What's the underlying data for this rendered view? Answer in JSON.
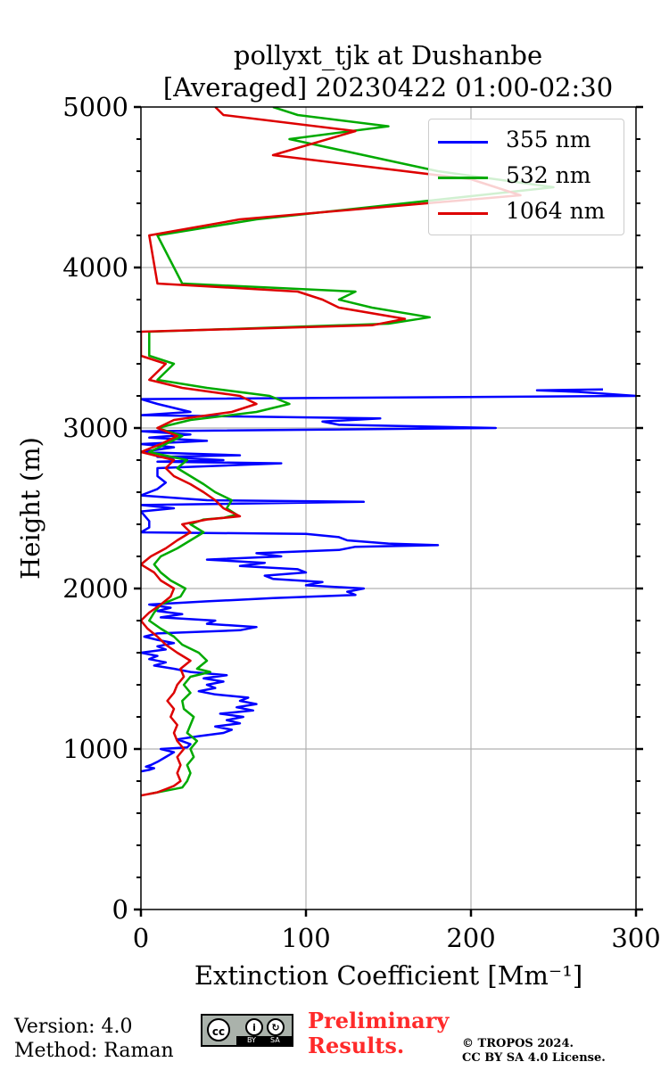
{
  "chart_data": {
    "type": "line",
    "title": [
      "pollyxt_tjk at Dushanbe",
      "[Averaged] 20230422 01:00-02:30"
    ],
    "xlabel": "Extinction Coefficient [Mm⁻¹]",
    "ylabel": "Height (m)",
    "xlim": [
      0,
      300
    ],
    "ylim": [
      0,
      5000
    ],
    "xticks": [
      0,
      100,
      200,
      300
    ],
    "yticks": [
      0,
      1000,
      2000,
      3000,
      4000,
      5000
    ],
    "grid": true,
    "legend_position": "top-right",
    "series": [
      {
        "name": "355 nm",
        "color": "#0000ff",
        "points": [
          [
            0,
            860
          ],
          [
            5,
            870
          ],
          [
            8,
            880
          ],
          [
            3,
            890
          ],
          [
            6,
            900
          ],
          [
            10,
            920
          ],
          [
            15,
            950
          ],
          [
            20,
            980
          ],
          [
            12,
            1000
          ],
          [
            28,
            1010
          ],
          [
            30,
            1030
          ],
          [
            22,
            1060
          ],
          [
            35,
            1080
          ],
          [
            50,
            1100
          ],
          [
            55,
            1120
          ],
          [
            45,
            1140
          ],
          [
            60,
            1160
          ],
          [
            52,
            1180
          ],
          [
            62,
            1200
          ],
          [
            48,
            1220
          ],
          [
            68,
            1240
          ],
          [
            58,
            1260
          ],
          [
            70,
            1280
          ],
          [
            60,
            1300
          ],
          [
            65,
            1320
          ],
          [
            45,
            1340
          ],
          [
            35,
            1360
          ],
          [
            45,
            1380
          ],
          [
            40,
            1400
          ],
          [
            50,
            1420
          ],
          [
            38,
            1440
          ],
          [
            52,
            1460
          ],
          [
            30,
            1480
          ],
          [
            20,
            1500
          ],
          [
            8,
            1520
          ],
          [
            15,
            1540
          ],
          [
            5,
            1560
          ],
          [
            10,
            1580
          ],
          [
            0,
            1600
          ],
          [
            15,
            1620
          ],
          [
            10,
            1640
          ],
          [
            20,
            1660
          ],
          [
            10,
            1680
          ],
          [
            2,
            1700
          ],
          [
            10,
            1720
          ],
          [
            60,
            1740
          ],
          [
            70,
            1760
          ],
          [
            40,
            1780
          ],
          [
            45,
            1800
          ],
          [
            12,
            1820
          ],
          [
            25,
            1840
          ],
          [
            10,
            1860
          ],
          [
            18,
            1880
          ],
          [
            5,
            1900
          ],
          [
            40,
            1920
          ],
          [
            80,
            1940
          ],
          [
            130,
            1960
          ],
          [
            125,
            1980
          ],
          [
            135,
            2000
          ],
          [
            100,
            2020
          ],
          [
            110,
            2040
          ],
          [
            80,
            2060
          ],
          [
            75,
            2080
          ],
          [
            100,
            2100
          ],
          [
            95,
            2120
          ],
          [
            60,
            2140
          ],
          [
            75,
            2160
          ],
          [
            40,
            2180
          ],
          [
            85,
            2200
          ],
          [
            70,
            2220
          ],
          [
            120,
            2240
          ],
          [
            130,
            2260
          ],
          [
            180,
            2270
          ],
          [
            150,
            2280
          ],
          [
            125,
            2300
          ],
          [
            120,
            2320
          ],
          [
            100,
            2340
          ],
          [
            0,
            2350
          ],
          [
            5,
            2380
          ],
          [
            5,
            2420
          ],
          [
            0,
            2480
          ],
          [
            20,
            2500
          ],
          [
            0,
            2520
          ],
          [
            135,
            2540
          ],
          [
            40,
            2550
          ],
          [
            0,
            2580
          ],
          [
            5,
            2600
          ],
          [
            10,
            2620
          ],
          [
            15,
            2660
          ],
          [
            10,
            2700
          ],
          [
            10,
            2750
          ],
          [
            85,
            2780
          ],
          [
            10,
            2790
          ],
          [
            50,
            2800
          ],
          [
            10,
            2820
          ],
          [
            60,
            2830
          ],
          [
            0,
            2850
          ],
          [
            20,
            2880
          ],
          [
            0,
            2900
          ],
          [
            40,
            2920
          ],
          [
            5,
            2940
          ],
          [
            30,
            2960
          ],
          [
            0,
            2980
          ],
          [
            215,
            3000
          ],
          [
            120,
            3020
          ],
          [
            110,
            3040
          ],
          [
            145,
            3060
          ],
          [
            0,
            3080
          ],
          [
            30,
            3100
          ],
          [
            10,
            3150
          ],
          [
            0,
            3180
          ],
          [
            300,
            3200
          ],
          [
            265,
            3225
          ],
          [
            240,
            3235
          ],
          [
            280,
            3240
          ]
        ]
      },
      {
        "name": "532 nm",
        "color": "#00aa00",
        "points": [
          [
            5,
            720
          ],
          [
            15,
            740
          ],
          [
            25,
            760
          ],
          [
            28,
            800
          ],
          [
            30,
            850
          ],
          [
            28,
            900
          ],
          [
            32,
            950
          ],
          [
            30,
            1000
          ],
          [
            34,
            1050
          ],
          [
            28,
            1100
          ],
          [
            30,
            1150
          ],
          [
            32,
            1200
          ],
          [
            26,
            1250
          ],
          [
            25,
            1300
          ],
          [
            30,
            1350
          ],
          [
            26,
            1400
          ],
          [
            30,
            1450
          ],
          [
            42,
            1480
          ],
          [
            34,
            1500
          ],
          [
            40,
            1550
          ],
          [
            35,
            1600
          ],
          [
            25,
            1650
          ],
          [
            20,
            1700
          ],
          [
            12,
            1750
          ],
          [
            5,
            1800
          ],
          [
            8,
            1850
          ],
          [
            12,
            1900
          ],
          [
            24,
            1950
          ],
          [
            27,
            2000
          ],
          [
            18,
            2050
          ],
          [
            12,
            2100
          ],
          [
            8,
            2150
          ],
          [
            12,
            2200
          ],
          [
            22,
            2250
          ],
          [
            30,
            2300
          ],
          [
            38,
            2350
          ],
          [
            30,
            2400
          ],
          [
            38,
            2430
          ],
          [
            50,
            2440
          ],
          [
            58,
            2460
          ],
          [
            52,
            2500
          ],
          [
            55,
            2550
          ],
          [
            45,
            2600
          ],
          [
            38,
            2650
          ],
          [
            30,
            2700
          ],
          [
            22,
            2750
          ],
          [
            28,
            2800
          ],
          [
            5,
            2850
          ],
          [
            15,
            2900
          ],
          [
            25,
            2950
          ],
          [
            10,
            3000
          ],
          [
            30,
            3050
          ],
          [
            70,
            3100
          ],
          [
            90,
            3150
          ],
          [
            78,
            3200
          ],
          [
            40,
            3250
          ],
          [
            10,
            3300
          ],
          [
            20,
            3400
          ],
          [
            5,
            3450
          ],
          [
            5,
            3600
          ],
          [
            150,
            3650
          ],
          [
            175,
            3690
          ],
          [
            140,
            3750
          ],
          [
            120,
            3800
          ],
          [
            130,
            3850
          ],
          [
            25,
            3900
          ],
          [
            10,
            4200
          ],
          [
            70,
            4300
          ],
          [
            250,
            4500
          ],
          [
            180,
            4600
          ],
          [
            90,
            4800
          ],
          [
            150,
            4880
          ],
          [
            95,
            4950
          ],
          [
            80,
            5000
          ]
        ]
      },
      {
        "name": "1064 nm",
        "color": "#dd0000",
        "points": [
          [
            0,
            710
          ],
          [
            10,
            730
          ],
          [
            15,
            750
          ],
          [
            20,
            770
          ],
          [
            24,
            800
          ],
          [
            22,
            850
          ],
          [
            24,
            900
          ],
          [
            22,
            950
          ],
          [
            26,
            1000
          ],
          [
            22,
            1050
          ],
          [
            20,
            1100
          ],
          [
            22,
            1150
          ],
          [
            18,
            1200
          ],
          [
            20,
            1250
          ],
          [
            16,
            1300
          ],
          [
            20,
            1350
          ],
          [
            22,
            1400
          ],
          [
            26,
            1450
          ],
          [
            24,
            1500
          ],
          [
            30,
            1550
          ],
          [
            22,
            1600
          ],
          [
            15,
            1650
          ],
          [
            10,
            1700
          ],
          [
            4,
            1750
          ],
          [
            0,
            1800
          ],
          [
            5,
            1850
          ],
          [
            12,
            1900
          ],
          [
            18,
            1950
          ],
          [
            20,
            2000
          ],
          [
            12,
            2050
          ],
          [
            8,
            2100
          ],
          [
            0,
            2150
          ],
          [
            6,
            2200
          ],
          [
            15,
            2250
          ],
          [
            22,
            2300
          ],
          [
            30,
            2350
          ],
          [
            25,
            2400
          ],
          [
            40,
            2430
          ],
          [
            60,
            2450
          ],
          [
            50,
            2500
          ],
          [
            45,
            2550
          ],
          [
            38,
            2600
          ],
          [
            30,
            2650
          ],
          [
            20,
            2700
          ],
          [
            15,
            2750
          ],
          [
            20,
            2800
          ],
          [
            0,
            2850
          ],
          [
            12,
            2900
          ],
          [
            22,
            2950
          ],
          [
            10,
            3000
          ],
          [
            20,
            3050
          ],
          [
            55,
            3100
          ],
          [
            70,
            3150
          ],
          [
            60,
            3200
          ],
          [
            25,
            3250
          ],
          [
            5,
            3300
          ],
          [
            15,
            3400
          ],
          [
            0,
            3450
          ],
          [
            0,
            3600
          ],
          [
            140,
            3640
          ],
          [
            160,
            3680
          ],
          [
            120,
            3750
          ],
          [
            110,
            3800
          ],
          [
            95,
            3850
          ],
          [
            10,
            3900
          ],
          [
            5,
            4200
          ],
          [
            60,
            4300
          ],
          [
            230,
            4450
          ],
          [
            200,
            4550
          ],
          [
            80,
            4700
          ],
          [
            130,
            4850
          ],
          [
            50,
            4950
          ],
          [
            45,
            5000
          ]
        ]
      }
    ]
  },
  "footer": {
    "version": "Version: 4.0",
    "method": "Method: Raman",
    "license_badge": [
      "cc",
      "BY",
      "SA"
    ],
    "preliminary": [
      "Preliminary",
      "Results."
    ],
    "copyright": [
      "© TROPOS 2024.",
      "CC BY SA 4.0 License."
    ]
  }
}
